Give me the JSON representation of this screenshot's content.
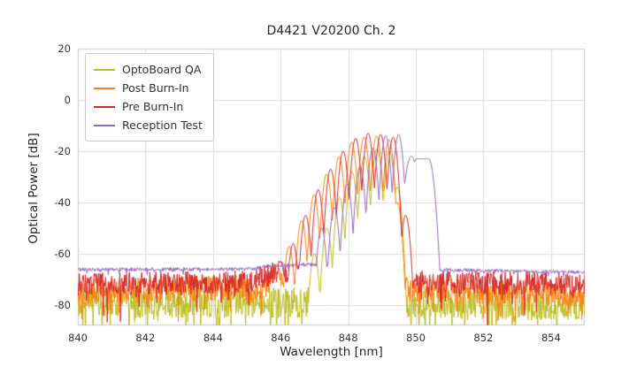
{
  "chart_data": {
    "type": "line",
    "title": "D4421 V20200 Ch. 2",
    "xlabel": "Wavelength [nm]",
    "ylabel": "Optical Power [dB]",
    "xlim": [
      840,
      855
    ],
    "ylim": [
      -88,
      20
    ],
    "xticks": [
      840,
      842,
      844,
      846,
      848,
      850,
      852,
      854
    ],
    "yticks": [
      20,
      0,
      -20,
      -40,
      -60,
      -80
    ],
    "grid": true,
    "grid_color": "#dcdce2",
    "background": "#ffffff",
    "legend_position": "upper left",
    "sample_step_nm": 0.015,
    "default_peak_width": 0.04,
    "series": [
      {
        "name": "OptoBoard QA",
        "color": "#bcbd22",
        "seed": 11,
        "baseline": [
          [
            840,
            -79
          ],
          [
            846.5,
            -79
          ],
          [
            850,
            -80
          ],
          [
            855,
            -80
          ]
        ],
        "noise_up": 6,
        "noise_down": 16,
        "spike_prob": 0.12,
        "peaks": [
          [
            847.0,
            -60
          ],
          [
            847.37,
            -50
          ],
          [
            847.74,
            -38
          ],
          [
            848.11,
            -28
          ],
          [
            848.48,
            -22
          ],
          [
            848.85,
            -19
          ],
          [
            849.22,
            -20
          ],
          [
            849.45,
            -34
          ]
        ]
      },
      {
        "name": "Post Burn-In",
        "color": "#ff7f0e",
        "seed": 22,
        "baseline": [
          [
            840,
            -75
          ],
          [
            845.5,
            -73
          ],
          [
            846.2,
            -69
          ],
          [
            850,
            -74
          ],
          [
            855,
            -76
          ]
        ],
        "noise_up": 5,
        "noise_down": 14,
        "spike_prob": 0.11,
        "peaks": [
          [
            845.88,
            -64
          ],
          [
            846.25,
            -57
          ],
          [
            846.62,
            -47
          ],
          [
            846.99,
            -37
          ],
          [
            847.36,
            -29
          ],
          [
            847.73,
            -22
          ],
          [
            848.1,
            -16.5
          ],
          [
            848.47,
            -14.5
          ],
          [
            848.84,
            -14
          ],
          [
            849.21,
            -15.5
          ],
          [
            849.45,
            -40
          ]
        ]
      },
      {
        "name": "Pre Burn-In",
        "color": "#d62728",
        "seed": 33,
        "baseline": [
          [
            840,
            -72
          ],
          [
            845,
            -71
          ],
          [
            846,
            -67
          ],
          [
            850,
            -71
          ],
          [
            855,
            -72
          ]
        ],
        "noise_up": 4.5,
        "noise_down": 13,
        "spike_prob": 0.11,
        "peaks": [
          [
            846.0,
            -63
          ],
          [
            846.37,
            -56
          ],
          [
            846.74,
            -45
          ],
          [
            847.11,
            -35
          ],
          [
            847.48,
            -27
          ],
          [
            847.85,
            -20
          ],
          [
            848.22,
            -15
          ],
          [
            848.59,
            -13
          ],
          [
            848.96,
            -13.5
          ],
          [
            849.33,
            -14.5
          ],
          [
            849.7,
            -45
          ]
        ]
      },
      {
        "name": "Reception Test",
        "color": "#9467bd",
        "seed": 44,
        "baseline": [
          [
            840,
            -66.2
          ],
          [
            845.2,
            -66.0
          ],
          [
            845.6,
            -64.8
          ],
          [
            846.8,
            -64.2
          ],
          [
            850.4,
            -64.8
          ],
          [
            850.7,
            -66.3
          ],
          [
            855,
            -67.3
          ]
        ],
        "noise_up": 0.7,
        "noise_down": 1.6,
        "spike_prob": 0.1,
        "peaks": [
          [
            847.21,
            -50
          ],
          [
            847.59,
            -42
          ],
          [
            847.97,
            -33
          ],
          [
            848.35,
            -26
          ],
          [
            848.73,
            -19
          ],
          [
            849.11,
            -14
          ],
          [
            849.49,
            -13.5
          ],
          [
            849.87,
            -22,
            0.06
          ],
          [
            850.2,
            -23,
            0.05,
            0.18
          ]
        ]
      }
    ]
  }
}
